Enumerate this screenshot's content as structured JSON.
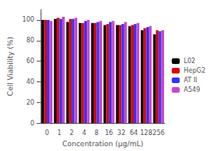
{
  "chart_data": {
    "type": "bar",
    "xlabel": "Concentration (μg/mL)",
    "ylabel": "Cell Viability (%)",
    "categories": [
      "0",
      "1",
      "2",
      "4",
      "8",
      "16",
      "32",
      "64",
      "128",
      "256"
    ],
    "series": [
      {
        "name": "L02",
        "color": "#000000",
        "values": [
          100,
          101,
          98,
          97,
          97,
          95,
          95,
          94,
          90,
          86
        ]
      },
      {
        "name": "HepG2",
        "color": "#dd0000",
        "values": [
          100,
          102,
          101,
          97,
          97,
          96,
          95,
          95,
          92,
          90
        ]
      },
      {
        "name": "AT II",
        "color": "#3333ff",
        "values": [
          100,
          101,
          101,
          99,
          98,
          98,
          96,
          96,
          93,
          89
        ]
      },
      {
        "name": "A549",
        "color": "#cc44cc",
        "values": [
          99,
          103,
          102,
          100,
          99,
          99,
          98,
          97,
          94,
          90
        ]
      }
    ],
    "ylim": [
      0,
      110
    ],
    "yticks": [
      0,
      20,
      40,
      60,
      80,
      100
    ],
    "grid": false,
    "legend": "right"
  }
}
